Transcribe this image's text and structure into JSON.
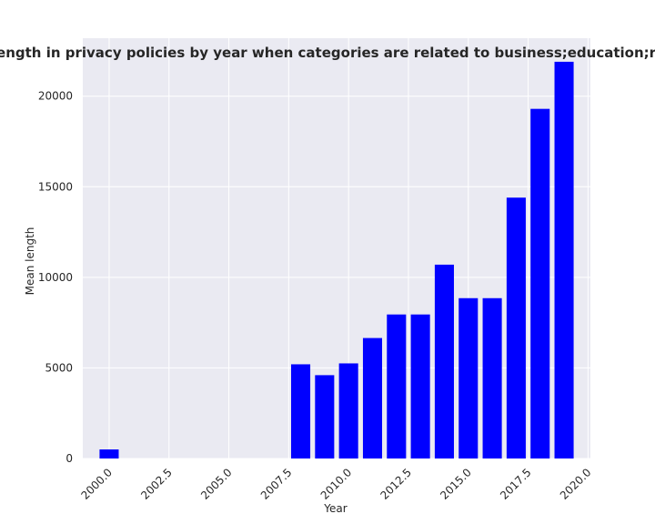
{
  "chart_data": {
    "type": "bar",
    "title": "Mean length in privacy policies by year when categories are related to business;education;realestate",
    "xlabel": "Year",
    "ylabel": "Mean length",
    "xlim": [
      1998.9,
      2020.1
    ],
    "ylim": [
      0,
      23200
    ],
    "xticks": [
      2000.0,
      2002.5,
      2005.0,
      2007.5,
      2010.0,
      2012.5,
      2015.0,
      2017.5,
      2020.0
    ],
    "xtick_labels": [
      "2000.0",
      "2002.5",
      "2005.0",
      "2007.5",
      "2010.0",
      "2012.5",
      "2015.0",
      "2017.5",
      "2020.0"
    ],
    "yticks": [
      0,
      5000,
      10000,
      15000,
      20000
    ],
    "ytick_labels": [
      "0",
      "5000",
      "10000",
      "15000",
      "20000"
    ],
    "x": [
      2000,
      2008,
      2009,
      2010,
      2011,
      2012,
      2013,
      2014,
      2015,
      2016,
      2017,
      2018,
      2019
    ],
    "values": [
      500,
      5200,
      4600,
      5250,
      6650,
      7950,
      7950,
      10700,
      8850,
      8850,
      14400,
      19300,
      21900
    ],
    "bar_color": "#0000ff",
    "background_color": "#eaeaf2",
    "grid_color": "#ffffff",
    "grid": true
  }
}
